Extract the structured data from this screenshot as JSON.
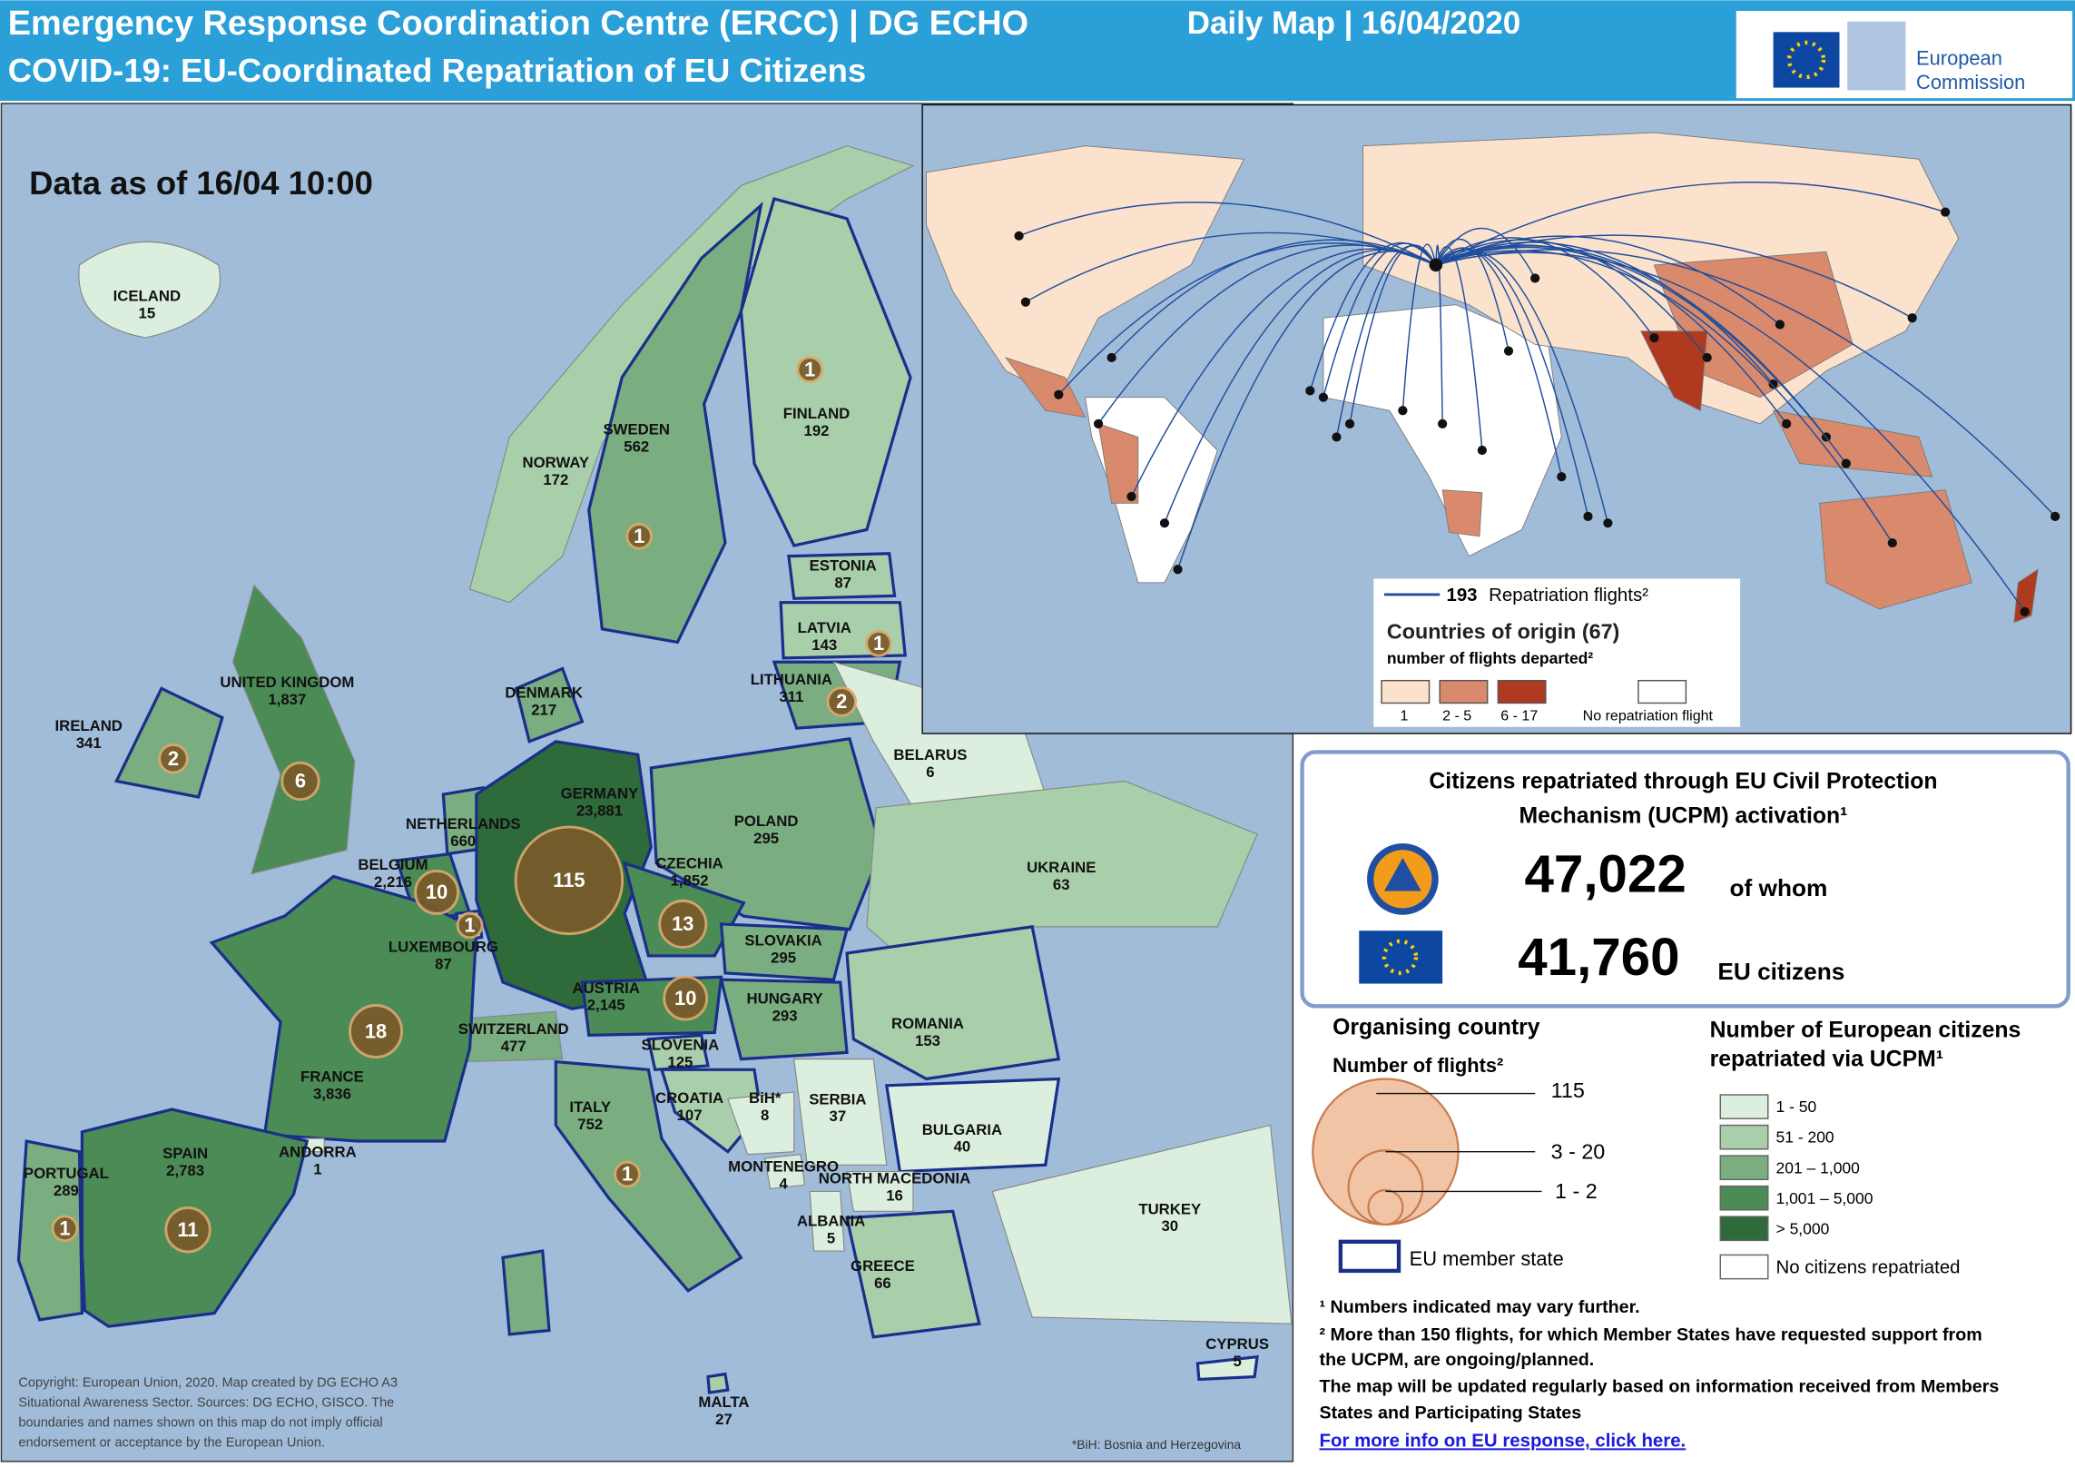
{
  "header": {
    "title_line1": "Emergency Response Coordination Centre (ERCC) | DG ECHO",
    "subtitle": "Daily Map | 16/04/2020",
    "title_line2": "COVID-19: EU-Coordinated Repatriation of EU Citizens",
    "logo": [
      "European",
      "Commission"
    ]
  },
  "map": {
    "data_as_of": "Data as of 16/04 10:00",
    "countries": [
      {
        "name": "ICELAND",
        "value": "15"
      },
      {
        "name": "NORWAY",
        "value": "172"
      },
      {
        "name": "SWEDEN",
        "value": "562",
        "flights": 1
      },
      {
        "name": "FINLAND",
        "value": "192",
        "flights": 1
      },
      {
        "name": "ESTONIA",
        "value": "87"
      },
      {
        "name": "LATVIA",
        "value": "143",
        "flights": 1
      },
      {
        "name": "LITHUANIA",
        "value": "311",
        "flights": 2
      },
      {
        "name": "DENMARK",
        "value": "217"
      },
      {
        "name": "UNITED KINGDOM",
        "value": "1,837",
        "flights": 6
      },
      {
        "name": "IRELAND",
        "value": "341",
        "flights": 2
      },
      {
        "name": "NETHERLANDS",
        "value": "660"
      },
      {
        "name": "GERMANY",
        "value": "23,881",
        "flights": 115
      },
      {
        "name": "BELGIUM",
        "value": "2,216",
        "flights": 10
      },
      {
        "name": "LUXEMBOURG",
        "value": "87",
        "flights": 1
      },
      {
        "name": "POLAND",
        "value": "295"
      },
      {
        "name": "CZECHIA",
        "value": "1,852",
        "flights": 13
      },
      {
        "name": "SLOVAKIA",
        "value": "295"
      },
      {
        "name": "AUSTRIA",
        "value": "2,145",
        "flights": 10
      },
      {
        "name": "HUNGARY",
        "value": "293"
      },
      {
        "name": "SWITZERLAND",
        "value": "477"
      },
      {
        "name": "SLOVENIA",
        "value": "125"
      },
      {
        "name": "FRANCE",
        "value": "3,836",
        "flights": 18
      },
      {
        "name": "ITALY",
        "value": "752",
        "flights": 1
      },
      {
        "name": "CROATIA",
        "value": "107"
      },
      {
        "name": "BiH*",
        "value": "8"
      },
      {
        "name": "SERBIA",
        "value": "37"
      },
      {
        "name": "BELARUS",
        "value": "6"
      },
      {
        "name": "UKRAINE",
        "value": "63"
      },
      {
        "name": "ROMANIA",
        "value": "153"
      },
      {
        "name": "BULGARIA",
        "value": "40"
      },
      {
        "name": "MONTENEGRO",
        "value": "4"
      },
      {
        "name": "NORTH MACEDONIA",
        "value": "16"
      },
      {
        "name": "ALBANIA",
        "value": "5"
      },
      {
        "name": "GREECE",
        "value": "66"
      },
      {
        "name": "TURKEY",
        "value": "30"
      },
      {
        "name": "CYPRUS",
        "value": "5"
      },
      {
        "name": "MALTA",
        "value": "27"
      },
      {
        "name": "ANDORRA",
        "value": "1"
      },
      {
        "name": "SPAIN",
        "value": "2,783",
        "flights": 11
      },
      {
        "name": "PORTUGAL",
        "value": "289",
        "flights": 1
      }
    ],
    "copyright": [
      "Copyright: European Union, 2020. Map created by DG ECHO A3",
      "Situational Awareness Sector. Sources: DG ECHO, GISCO. The",
      "boundaries and names shown on this map do not imply official",
      "endorsement or acceptance by the European Union."
    ],
    "bih_note": "*BiH: Bosnia and Herzegovina"
  },
  "inset_legend": {
    "flights_count": "193",
    "flights_label": "Repatriation flights²",
    "title": "Countries of origin (67)",
    "subtitle": "number of flights departed²",
    "classes": [
      "1",
      "2 - 5",
      "6 - 17",
      "No repatriation  flight"
    ]
  },
  "stats": {
    "title": [
      "Citizens repatriated through EU Civil Protection",
      "Mechanism (UCPM) activation¹"
    ],
    "total": "47,022",
    "total_suffix": "of whom",
    "eu": "41,760",
    "eu_suffix": "EU citizens"
  },
  "flights_legend": {
    "title": "Organising country",
    "subtitle": "Number of flights²",
    "sizes": [
      "115",
      "3 - 20",
      "1 - 2"
    ],
    "eu_member": "EU member state"
  },
  "citizens_legend": {
    "title": [
      "Number of European citizens",
      "repatriated via UCPM¹"
    ],
    "classes": [
      "1 - 50",
      "51 - 200",
      "201 – 1,000",
      "1,001 – 5,000",
      "> 5,000",
      "No  citizens repatriated"
    ]
  },
  "footnotes": [
    "¹ Numbers indicated may vary further.",
    "² More than 150 flights, for which Member States have requested  support  from",
    "the UCPM, are ongoing/planned.",
    "The map will be updated  regularly based on information  received from Members",
    "States and Participating States"
  ],
  "link": "For more info on EU response, click here."
}
